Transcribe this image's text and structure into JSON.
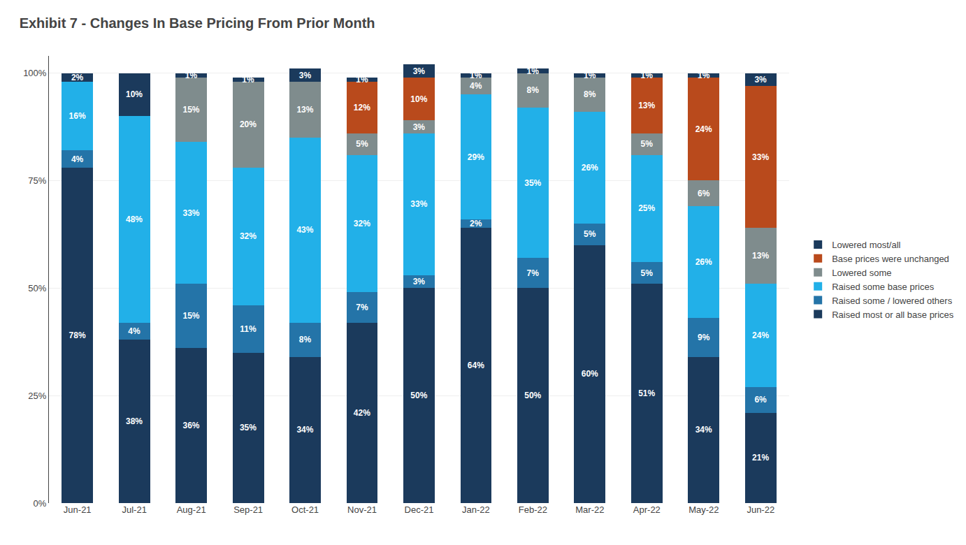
{
  "chart_data": {
    "type": "bar",
    "stacked": true,
    "title": "Exhibit 7 - Changes In Base Pricing From Prior Month",
    "categories": [
      "Jun-21",
      "Jul-21",
      "Aug-21",
      "Sep-21",
      "Oct-21",
      "Nov-21",
      "Dec-21",
      "Jan-22",
      "Feb-22",
      "Mar-22",
      "Apr-22",
      "May-22",
      "Jun-22"
    ],
    "series": [
      {
        "name": "Raised most or all base prices",
        "color": "#1b3a5c",
        "values": [
          78,
          38,
          36,
          35,
          34,
          42,
          50,
          64,
          50,
          60,
          51,
          34,
          21
        ],
        "value_labels": [
          "78%",
          "38%",
          "36%",
          "35%",
          "34%",
          "42%",
          "50%",
          "64%",
          "50%",
          "60%",
          "51%",
          "34%",
          "21%"
        ]
      },
      {
        "name": "Raised some / lowered others",
        "color": "#2474a8",
        "values": [
          4,
          4,
          15,
          11,
          8,
          7,
          3,
          2,
          7,
          5,
          5,
          9,
          6
        ],
        "value_labels": [
          "4%",
          "4%",
          "15%",
          "11%",
          "8%",
          "7%",
          "3%",
          "2%",
          "7%",
          "5%",
          "5%",
          "9%",
          "6%"
        ]
      },
      {
        "name": "Raised some base prices",
        "color": "#22b0e8",
        "values": [
          16,
          48,
          33,
          32,
          43,
          32,
          33,
          29,
          35,
          26,
          25,
          26,
          24
        ],
        "value_labels": [
          "16%",
          "48%",
          "33%",
          "32%",
          "43%",
          "32%",
          "33%",
          "29%",
          "35%",
          "26%",
          "25%",
          "26%",
          "24%"
        ]
      },
      {
        "name": "Lowered some",
        "color": "#7f8c8d",
        "values": [
          0,
          0,
          15,
          20,
          13,
          5,
          3,
          4,
          8,
          8,
          5,
          6,
          13
        ],
        "value_labels": [
          null,
          null,
          "15%",
          "20%",
          "13%",
          "5%",
          "3%",
          "4%",
          "8%",
          "8%",
          "5%",
          "6%",
          "13%"
        ]
      },
      {
        "name": "Base prices were unchanged",
        "color": "#b94a1c",
        "values": [
          0,
          0,
          0,
          0,
          0,
          12,
          10,
          0,
          0,
          0,
          13,
          24,
          33
        ],
        "value_labels": [
          null,
          null,
          null,
          null,
          null,
          "12%",
          "10%",
          null,
          null,
          null,
          "13%",
          "24%",
          "33%"
        ]
      },
      {
        "name": "Lowered most/all",
        "color": "#1b3a5c",
        "values": [
          2,
          10,
          1,
          1,
          3,
          1,
          3,
          1,
          1,
          1,
          1,
          1,
          3
        ],
        "value_labels": [
          "2%",
          "10%",
          "1%",
          "1%",
          "3%",
          "1%",
          "3%",
          "1%",
          "1%",
          "1%",
          "1%",
          "1%",
          "3%"
        ]
      }
    ],
    "ylim": [
      0,
      104
    ],
    "yticks": [
      {
        "value": 0,
        "label": "0%"
      },
      {
        "value": 25,
        "label": "25%"
      },
      {
        "value": 50,
        "label": "50%"
      },
      {
        "value": 75,
        "label": "75%"
      },
      {
        "value": 100,
        "label": "100%"
      }
    ],
    "grid": true,
    "legend": "right",
    "data_labels": true
  }
}
